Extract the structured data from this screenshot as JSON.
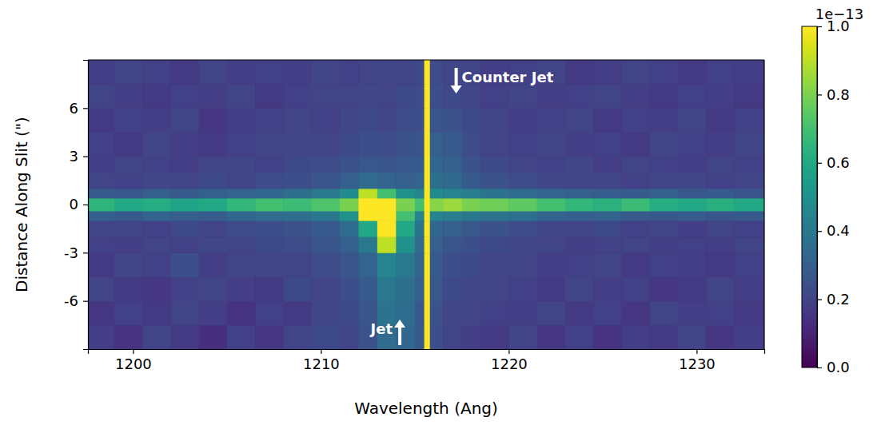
{
  "chart_data": {
    "type": "heatmap",
    "x_label": "Wavelength (Ang)",
    "y_label": "Distance Along Slit (\")",
    "xlim": [
      1197.6,
      1233.6
    ],
    "ylim": [
      -9,
      9
    ],
    "xticks": [
      1200,
      1210,
      1220,
      1230
    ],
    "yticks": [
      -6,
      -3,
      0,
      3,
      6
    ],
    "color": "viridis",
    "x_edges": [
      1197.6,
      1199,
      1200.5,
      1202,
      1203.5,
      1205,
      1206.5,
      1208,
      1209.5,
      1211,
      1212,
      1213,
      1214,
      1215,
      1215.5,
      1215.8,
      1216.5,
      1217.5,
      1218.5,
      1220,
      1221.5,
      1223,
      1224.5,
      1226,
      1227.5,
      1229,
      1230.5,
      1232,
      1233.6
    ],
    "y_edges": [
      -9,
      -7.5,
      -6,
      -4.5,
      -3,
      -2,
      -1,
      -0.4,
      0.4,
      1,
      2,
      3,
      4.5,
      6,
      7.5,
      9
    ],
    "cells": [
      [
        0.18,
        0.15,
        0.2,
        0.17,
        0.14,
        0.19,
        0.16,
        0.2,
        0.22,
        0.2,
        0.25,
        0.35,
        0.33,
        0.28,
        1.0,
        0.24,
        0.2,
        0.18,
        0.17,
        0.2,
        0.16,
        0.19,
        0.15,
        0.18,
        0.17,
        0.2,
        0.16,
        0.18
      ],
      [
        0.16,
        0.19,
        0.17,
        0.2,
        0.18,
        0.15,
        0.19,
        0.17,
        0.21,
        0.22,
        0.26,
        0.38,
        0.35,
        0.27,
        1.0,
        0.25,
        0.21,
        0.2,
        0.19,
        0.18,
        0.2,
        0.17,
        0.19,
        0.16,
        0.2,
        0.18,
        0.19,
        0.17
      ],
      [
        0.2,
        0.17,
        0.16,
        0.19,
        0.2,
        0.18,
        0.17,
        0.22,
        0.2,
        0.24,
        0.28,
        0.4,
        0.36,
        0.3,
        1.0,
        0.27,
        0.22,
        0.21,
        0.2,
        0.19,
        0.17,
        0.2,
        0.18,
        0.19,
        0.16,
        0.17,
        0.2,
        0.18
      ],
      [
        0.17,
        0.2,
        0.19,
        0.24,
        0.18,
        0.2,
        0.21,
        0.2,
        0.23,
        0.26,
        0.32,
        0.45,
        0.4,
        0.32,
        1.0,
        0.28,
        0.24,
        0.22,
        0.21,
        0.2,
        0.18,
        0.19,
        0.2,
        0.17,
        0.19,
        0.18,
        0.17,
        0.19
      ],
      [
        0.19,
        0.18,
        0.2,
        0.19,
        0.21,
        0.2,
        0.22,
        0.23,
        0.26,
        0.3,
        0.4,
        0.9,
        0.5,
        0.35,
        1.0,
        0.3,
        0.26,
        0.24,
        0.22,
        0.21,
        0.2,
        0.18,
        0.19,
        0.2,
        0.18,
        0.19,
        0.18,
        0.2
      ],
      [
        0.2,
        0.21,
        0.19,
        0.22,
        0.2,
        0.23,
        0.24,
        0.25,
        0.28,
        0.35,
        0.6,
        1.0,
        0.6,
        0.38,
        1.0,
        0.33,
        0.3,
        0.27,
        0.25,
        0.23,
        0.21,
        0.2,
        0.22,
        0.19,
        0.2,
        0.18,
        0.2,
        0.19
      ],
      [
        0.3,
        0.28,
        0.32,
        0.3,
        0.29,
        0.33,
        0.35,
        0.36,
        0.4,
        0.5,
        1.0,
        1.0,
        0.7,
        0.45,
        1.0,
        0.45,
        0.42,
        0.4,
        0.38,
        0.36,
        0.32,
        0.3,
        0.31,
        0.28,
        0.27,
        0.29,
        0.26,
        0.28
      ],
      [
        0.65,
        0.6,
        0.62,
        0.58,
        0.6,
        0.66,
        0.7,
        0.68,
        0.72,
        0.8,
        1.0,
        1.0,
        0.8,
        0.7,
        1.0,
        0.82,
        0.85,
        0.8,
        0.78,
        0.75,
        0.7,
        0.66,
        0.64,
        0.68,
        0.62,
        0.6,
        0.63,
        0.6
      ],
      [
        0.28,
        0.27,
        0.3,
        0.28,
        0.3,
        0.32,
        0.33,
        0.36,
        0.4,
        0.48,
        0.9,
        0.7,
        0.5,
        0.45,
        1.0,
        0.48,
        0.45,
        0.42,
        0.38,
        0.35,
        0.32,
        0.3,
        0.29,
        0.28,
        0.3,
        0.27,
        0.28,
        0.26
      ],
      [
        0.2,
        0.19,
        0.21,
        0.2,
        0.22,
        0.2,
        0.23,
        0.24,
        0.26,
        0.3,
        0.35,
        0.32,
        0.3,
        0.32,
        1.0,
        0.36,
        0.34,
        0.28,
        0.25,
        0.23,
        0.21,
        0.2,
        0.21,
        0.19,
        0.2,
        0.21,
        0.19,
        0.2
      ],
      [
        0.18,
        0.2,
        0.19,
        0.18,
        0.2,
        0.21,
        0.19,
        0.22,
        0.23,
        0.25,
        0.27,
        0.26,
        0.27,
        0.28,
        1.0,
        0.33,
        0.3,
        0.25,
        0.22,
        0.2,
        0.19,
        0.21,
        0.18,
        0.2,
        0.19,
        0.18,
        0.2,
        0.19
      ],
      [
        0.19,
        0.17,
        0.2,
        0.18,
        0.17,
        0.19,
        0.2,
        0.21,
        0.2,
        0.22,
        0.24,
        0.23,
        0.25,
        0.26,
        1.0,
        0.3,
        0.28,
        0.23,
        0.2,
        0.19,
        0.2,
        0.18,
        0.19,
        0.17,
        0.2,
        0.19,
        0.18,
        0.2
      ],
      [
        0.17,
        0.19,
        0.18,
        0.2,
        0.16,
        0.18,
        0.19,
        0.2,
        0.19,
        0.21,
        0.22,
        0.21,
        0.23,
        0.24,
        1.0,
        0.26,
        0.25,
        0.22,
        0.2,
        0.18,
        0.19,
        0.2,
        0.17,
        0.19,
        0.18,
        0.2,
        0.17,
        0.19
      ],
      [
        0.2,
        0.18,
        0.17,
        0.19,
        0.18,
        0.2,
        0.17,
        0.19,
        0.2,
        0.2,
        0.21,
        0.2,
        0.22,
        0.23,
        1.0,
        0.24,
        0.22,
        0.21,
        0.19,
        0.2,
        0.18,
        0.19,
        0.2,
        0.18,
        0.17,
        0.19,
        0.18,
        0.17
      ],
      [
        0.18,
        0.2,
        0.19,
        0.17,
        0.2,
        0.18,
        0.19,
        0.18,
        0.2,
        0.19,
        0.2,
        0.21,
        0.2,
        0.22,
        1.0,
        0.23,
        0.21,
        0.2,
        0.18,
        0.19,
        0.2,
        0.17,
        0.18,
        0.2,
        0.19,
        0.17,
        0.19,
        0.18
      ]
    ],
    "colorbar": {
      "range": [
        0,
        1
      ],
      "ticks": [
        {
          "value": 0,
          "label": "0.0"
        },
        0.2,
        0.4,
        0.6,
        0.8,
        {
          "value": 1,
          "label": "1.0"
        }
      ],
      "offset_label": "1e−13"
    },
    "annotations": [
      {
        "text": "Counter Jet",
        "x": 1217.2,
        "y": 8.5
      },
      {
        "text": "Jet",
        "x": 1214.2,
        "y": -8.75
      }
    ]
  }
}
